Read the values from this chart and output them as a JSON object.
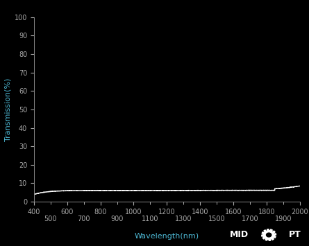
{
  "background_color": "#000000",
  "plot_bg_color": "#000000",
  "line_color": "#ffffff",
  "axis_color": "#888888",
  "tick_color": "#aaaaaa",
  "label_color": "#4db8d4",
  "xlabel": "Wavelength(nm)",
  "ylabel": "Transmission(%)",
  "xlim": [
    400,
    2000
  ],
  "ylim": [
    0,
    100
  ],
  "yticks": [
    0,
    10,
    20,
    30,
    40,
    50,
    60,
    70,
    80,
    90,
    100
  ],
  "xticks_major": [
    400,
    600,
    800,
    1000,
    1200,
    1400,
    1600,
    1800,
    2000
  ],
  "xticks_minor": [
    500,
    700,
    900,
    1100,
    1300,
    1500,
    1700,
    1900
  ],
  "wavelength_start": 400,
  "wavelength_end": 2000,
  "line_width": 1.0,
  "label_fontsize": 8,
  "tick_fontsize": 7
}
